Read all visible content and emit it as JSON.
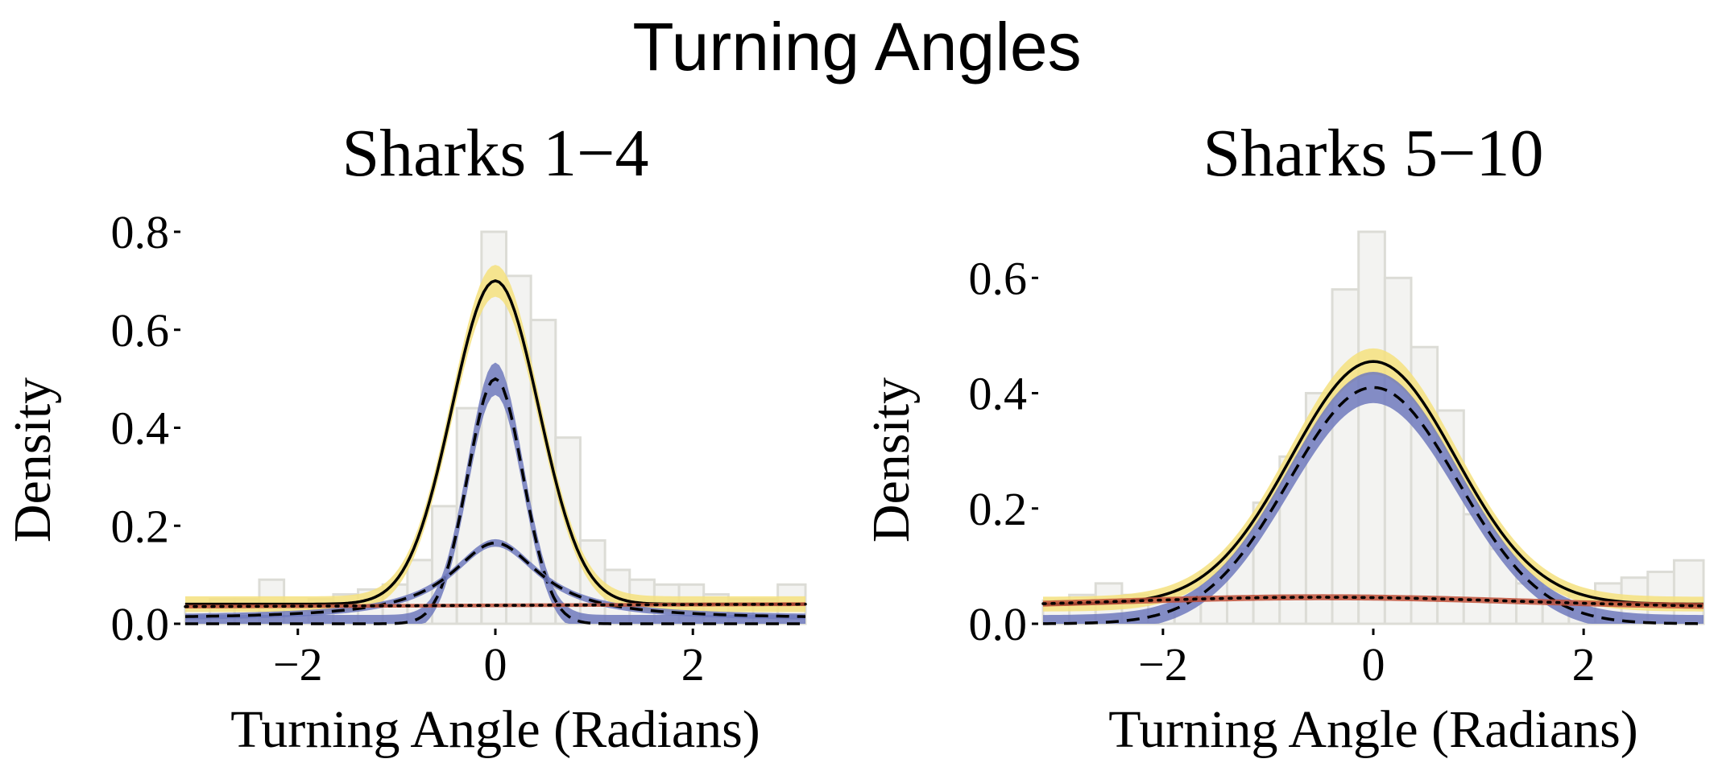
{
  "figure_title": "Turning Angles",
  "chart_data": [
    {
      "type": "area",
      "title": "Sharks 1−4",
      "xlabel": "Turning Angle (Radians)",
      "ylabel": "Density",
      "xlim": [
        -3.14,
        3.14
      ],
      "ylim": [
        0,
        0.8
      ],
      "x_ticks": [
        -2,
        0,
        2
      ],
      "x_tick_labels": [
        "−2",
        "0",
        "2"
      ],
      "y_ticks": [
        0.0,
        0.2,
        0.4,
        0.6,
        0.8
      ],
      "y_tick_labels": [
        "0.0",
        "0.2",
        "0.4",
        "0.6",
        "0.8"
      ],
      "grid": false,
      "histogram": {
        "bin_edges": [
          -3.14,
          -2.89,
          -2.64,
          -2.39,
          -2.14,
          -1.89,
          -1.64,
          -1.39,
          -1.14,
          -0.89,
          -0.64,
          -0.39,
          -0.14,
          0.11,
          0.36,
          0.61,
          0.86,
          1.11,
          1.36,
          1.61,
          1.86,
          2.11,
          2.36,
          2.61,
          2.86,
          3.14
        ],
        "values": [
          0.04,
          0.05,
          0.05,
          0.09,
          0.04,
          0.05,
          0.06,
          0.07,
          0.08,
          0.13,
          0.24,
          0.44,
          0.8,
          0.71,
          0.62,
          0.38,
          0.17,
          0.11,
          0.09,
          0.08,
          0.08,
          0.06,
          0.05,
          0.05,
          0.08
        ]
      },
      "components": [
        {
          "band": "#f5e07e",
          "line": "solid",
          "peak": 0.7,
          "spread": 0.44,
          "base": 0.04,
          "band_half_width": 0.025
        },
        {
          "band": "#6f79bd",
          "line": "dashed",
          "peak": 0.5,
          "spread": 0.28,
          "base": 0.0,
          "band_half_width": 0.03
        },
        {
          "band": "#6f79bd",
          "line": "dashed",
          "peak": 0.165,
          "spread": 0.55,
          "base": 0.01,
          "band_half_width": 0.01,
          "form": "cauchy"
        },
        {
          "band": "#c0503a",
          "line": "dotted",
          "start": 0.035,
          "end": 0.04,
          "band_half_width": 0.006,
          "form": "linear"
        }
      ]
    },
    {
      "type": "area",
      "title": "Sharks 5−10",
      "xlabel": "Turning Angle (Radians)",
      "ylabel": "Density",
      "xlim": [
        -3.14,
        3.14
      ],
      "ylim": [
        0,
        0.68
      ],
      "x_ticks": [
        -2,
        0,
        2
      ],
      "x_tick_labels": [
        "−2",
        "0",
        "2"
      ],
      "y_ticks": [
        0.0,
        0.2,
        0.4,
        0.6
      ],
      "y_tick_labels": [
        "0.0",
        "0.2",
        "0.4",
        "0.6"
      ],
      "grid": false,
      "histogram": {
        "bin_edges": [
          -3.14,
          -2.89,
          -2.64,
          -2.39,
          -2.14,
          -1.89,
          -1.64,
          -1.39,
          -1.14,
          -0.89,
          -0.64,
          -0.39,
          -0.14,
          0.11,
          0.36,
          0.61,
          0.86,
          1.11,
          1.36,
          1.61,
          1.86,
          2.11,
          2.36,
          2.61,
          2.86,
          3.14
        ],
        "values": [
          0.04,
          0.05,
          0.07,
          0.05,
          0.04,
          0.06,
          0.09,
          0.13,
          0.21,
          0.29,
          0.4,
          0.58,
          0.68,
          0.6,
          0.48,
          0.37,
          0.19,
          0.13,
          0.07,
          0.06,
          0.05,
          0.07,
          0.08,
          0.09,
          0.11
        ]
      },
      "components": [
        {
          "band": "#f5e07e",
          "line": "solid",
          "peak": 0.455,
          "spread": 0.78,
          "base": 0.034,
          "band_half_width": 0.02
        },
        {
          "band": "#6f79bd",
          "line": "dashed",
          "peak": 0.41,
          "spread": 0.8,
          "base": 0.0,
          "band_half_width": 0.025
        },
        {
          "band": "#c0503a",
          "line": "dotted",
          "peak": 0.046,
          "spread": 1.9,
          "base": 0.028,
          "center": -0.5,
          "band_half_width": 0.008
        }
      ]
    }
  ]
}
